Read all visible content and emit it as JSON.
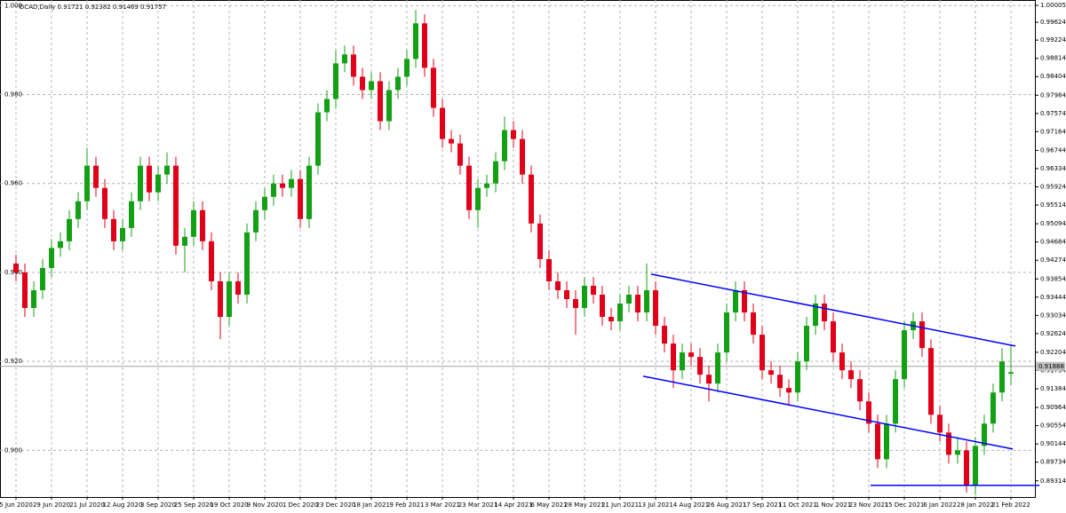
{
  "chart_data": {
    "type": "candlestick",
    "title": "AUDCAD,Daily 0.91721 0.92382 0.91469 0.91757",
    "up_color": "#14a014",
    "down_color": "#e0001a",
    "trendline_color": "#0000ff",
    "grid": true,
    "categories": [
      "5 Jun 2020",
      null,
      null,
      null,
      "29 Jun 2020",
      null,
      null,
      null,
      "21 Jul 2020",
      null,
      null,
      null,
      "12 Aug 2020",
      null,
      null,
      null,
      "3 Sep 2020",
      null,
      null,
      null,
      "25 Sep 2020",
      null,
      null,
      null,
      "19 Oct 2020",
      null,
      null,
      null,
      "9 Nov 2020",
      null,
      null,
      null,
      "1 Dec 2020",
      null,
      null,
      null,
      "23 Dec 2020",
      null,
      null,
      null,
      "18 Jan 2021",
      null,
      null,
      null,
      "9 Feb 2021",
      null,
      null,
      null,
      "3 Mar 2021",
      null,
      null,
      null,
      "23 Mar 2021",
      null,
      null,
      null,
      "14 Apr 2021",
      null,
      null,
      null,
      "6 May 2021",
      null,
      null,
      null,
      "28 May 2021",
      null,
      null,
      null,
      "21 Jun 2021",
      null,
      null,
      null,
      "13 Jul 2021",
      null,
      null,
      null,
      "4 Aug 2021",
      null,
      null,
      null,
      "26 Aug 2021",
      null,
      null,
      null,
      "17 Sep 2021",
      null,
      null,
      null,
      "11 Oct 2021",
      null,
      null,
      null,
      "1 Nov 2021",
      null,
      null,
      null,
      "23 Nov 2021",
      null,
      null,
      null,
      "15 Dec 2021",
      null,
      null,
      null,
      "6 Jan 2022",
      null,
      null,
      null,
      "28 Jan 2022",
      null,
      null,
      null,
      "21 Feb 2022"
    ],
    "ohlc": [
      [
        0.942,
        0.944,
        0.938,
        0.94
      ],
      [
        0.94,
        0.942,
        0.93,
        0.932
      ],
      [
        0.932,
        0.938,
        0.93,
        0.936
      ],
      [
        0.936,
        0.943,
        0.934,
        0.941
      ],
      [
        0.941,
        0.9475,
        0.939,
        0.9455
      ],
      [
        0.9455,
        0.949,
        0.9435,
        0.947
      ],
      [
        0.947,
        0.954,
        0.945,
        0.952
      ],
      [
        0.952,
        0.958,
        0.95,
        0.956
      ],
      [
        0.956,
        0.968,
        0.954,
        0.964
      ],
      [
        0.964,
        0.966,
        0.957,
        0.959
      ],
      [
        0.959,
        0.961,
        0.95,
        0.952
      ],
      [
        0.952,
        0.954,
        0.945,
        0.947
      ],
      [
        0.947,
        0.952,
        0.945,
        0.95
      ],
      [
        0.95,
        0.958,
        0.948,
        0.956
      ],
      [
        0.956,
        0.966,
        0.954,
        0.964
      ],
      [
        0.964,
        0.966,
        0.956,
        0.958
      ],
      [
        0.958,
        0.964,
        0.956,
        0.962
      ],
      [
        0.962,
        0.967,
        0.96,
        0.964
      ],
      [
        0.964,
        0.966,
        0.944,
        0.946
      ],
      [
        0.946,
        0.95,
        0.94,
        0.948
      ],
      [
        0.948,
        0.956,
        0.946,
        0.954
      ],
      [
        0.954,
        0.956,
        0.945,
        0.947
      ],
      [
        0.947,
        0.949,
        0.936,
        0.938
      ],
      [
        0.938,
        0.94,
        0.925,
        0.93
      ],
      [
        0.93,
        0.94,
        0.928,
        0.938
      ],
      [
        0.938,
        0.94,
        0.933,
        0.935
      ],
      [
        0.935,
        0.951,
        0.933,
        0.949
      ],
      [
        0.949,
        0.956,
        0.947,
        0.954
      ],
      [
        0.954,
        0.959,
        0.952,
        0.957
      ],
      [
        0.957,
        0.962,
        0.955,
        0.96
      ],
      [
        0.96,
        0.962,
        0.957,
        0.959
      ],
      [
        0.959,
        0.963,
        0.957,
        0.961
      ],
      [
        0.961,
        0.963,
        0.95,
        0.952
      ],
      [
        0.952,
        0.966,
        0.95,
        0.964
      ],
      [
        0.964,
        0.978,
        0.962,
        0.976
      ],
      [
        0.976,
        0.981,
        0.974,
        0.979
      ],
      [
        0.979,
        0.99,
        0.977,
        0.987
      ],
      [
        0.987,
        0.991,
        0.985,
        0.989
      ],
      [
        0.989,
        0.991,
        0.982,
        0.984
      ],
      [
        0.984,
        0.986,
        0.979,
        0.981
      ],
      [
        0.981,
        0.985,
        0.979,
        0.983
      ],
      [
        0.983,
        0.985,
        0.972,
        0.974
      ],
      [
        0.974,
        0.983,
        0.972,
        0.981
      ],
      [
        0.981,
        0.986,
        0.979,
        0.984
      ],
      [
        0.984,
        0.99,
        0.982,
        0.988
      ],
      [
        0.988,
        0.999,
        0.986,
        0.996
      ],
      [
        0.996,
        0.998,
        0.984,
        0.986
      ],
      [
        0.986,
        0.988,
        0.975,
        0.977
      ],
      [
        0.977,
        0.979,
        0.968,
        0.97
      ],
      [
        0.97,
        0.972,
        0.967,
        0.969
      ],
      [
        0.969,
        0.971,
        0.962,
        0.964
      ],
      [
        0.964,
        0.966,
        0.952,
        0.954
      ],
      [
        0.954,
        0.961,
        0.95,
        0.959
      ],
      [
        0.959,
        0.962,
        0.957,
        0.96
      ],
      [
        0.96,
        0.967,
        0.958,
        0.965
      ],
      [
        0.965,
        0.975,
        0.963,
        0.972
      ],
      [
        0.972,
        0.974,
        0.968,
        0.97
      ],
      [
        0.97,
        0.972,
        0.96,
        0.962
      ],
      [
        0.962,
        0.964,
        0.949,
        0.951
      ],
      [
        0.951,
        0.953,
        0.941,
        0.943
      ],
      [
        0.943,
        0.945,
        0.936,
        0.938
      ],
      [
        0.938,
        0.94,
        0.934,
        0.936
      ],
      [
        0.936,
        0.938,
        0.932,
        0.934
      ],
      [
        0.934,
        0.936,
        0.926,
        0.932
      ],
      [
        0.932,
        0.939,
        0.93,
        0.937
      ],
      [
        0.937,
        0.939,
        0.933,
        0.935
      ],
      [
        0.935,
        0.937,
        0.928,
        0.93
      ],
      [
        0.93,
        0.932,
        0.927,
        0.929
      ],
      [
        0.929,
        0.935,
        0.927,
        0.933
      ],
      [
        0.933,
        0.937,
        0.931,
        0.935
      ],
      [
        0.935,
        0.937,
        0.929,
        0.931
      ],
      [
        0.931,
        0.942,
        0.929,
        0.936
      ],
      [
        0.936,
        0.938,
        0.926,
        0.928
      ],
      [
        0.928,
        0.93,
        0.922,
        0.924
      ],
      [
        0.924,
        0.926,
        0.914,
        0.918
      ],
      [
        0.918,
        0.924,
        0.916,
        0.922
      ],
      [
        0.922,
        0.924,
        0.919,
        0.921
      ],
      [
        0.921,
        0.923,
        0.915,
        0.917
      ],
      [
        0.917,
        0.919,
        0.911,
        0.915
      ],
      [
        0.915,
        0.924,
        0.913,
        0.922
      ],
      [
        0.922,
        0.933,
        0.92,
        0.931
      ],
      [
        0.931,
        0.938,
        0.929,
        0.936
      ],
      [
        0.936,
        0.938,
        0.929,
        0.931
      ],
      [
        0.931,
        0.933,
        0.924,
        0.926
      ],
      [
        0.926,
        0.928,
        0.916,
        0.918
      ],
      [
        0.918,
        0.92,
        0.915,
        0.917
      ],
      [
        0.917,
        0.919,
        0.912,
        0.914
      ],
      [
        0.914,
        0.916,
        0.91,
        0.913
      ],
      [
        0.913,
        0.922,
        0.911,
        0.92
      ],
      [
        0.92,
        0.93,
        0.918,
        0.928
      ],
      [
        0.928,
        0.935,
        0.926,
        0.933
      ],
      [
        0.933,
        0.935,
        0.927,
        0.929
      ],
      [
        0.929,
        0.931,
        0.92,
        0.922
      ],
      [
        0.922,
        0.924,
        0.916,
        0.918
      ],
      [
        0.918,
        0.92,
        0.914,
        0.916
      ],
      [
        0.916,
        0.918,
        0.909,
        0.911
      ],
      [
        0.911,
        0.913,
        0.904,
        0.906
      ],
      [
        0.906,
        0.908,
        0.896,
        0.898
      ],
      [
        0.898,
        0.908,
        0.896,
        0.906
      ],
      [
        0.906,
        0.918,
        0.904,
        0.916
      ],
      [
        0.916,
        0.929,
        0.914,
        0.927
      ],
      [
        0.927,
        0.931,
        0.925,
        0.929
      ],
      [
        0.929,
        0.931,
        0.921,
        0.923
      ],
      [
        0.923,
        0.925,
        0.906,
        0.908
      ],
      [
        0.908,
        0.91,
        0.902,
        0.904
      ],
      [
        0.904,
        0.906,
        0.897,
        0.899
      ],
      [
        0.899,
        0.903,
        0.897,
        0.9
      ],
      [
        0.9,
        0.902,
        0.8905,
        0.892
      ],
      [
        0.892,
        0.903,
        0.89,
        0.901
      ],
      [
        0.901,
        0.908,
        0.899,
        0.906
      ],
      [
        0.906,
        0.915,
        0.904,
        0.913
      ],
      [
        0.913,
        0.923,
        0.911,
        0.92
      ],
      [
        0.91721,
        0.92382,
        0.91469,
        0.91757
      ]
    ],
    "current_price": 0.91888,
    "trendlines": [
      {
        "x": [
          71.5,
          112.5
        ],
        "y": [
          0.93961,
          0.92345
        ]
      },
      {
        "x": [
          70.6,
          112.2
        ],
        "y": [
          0.91667,
          0.90031
        ]
      },
      {
        "x": [
          96.2,
          115.2
        ],
        "y": [
          0.89213,
          0.89213
        ]
      }
    ],
    "ylim": [
      0.8895,
      1.00125
    ],
    "yticks": [
      {
        "value": 0.9,
        "label": "0.900"
      },
      {
        "value": 0.92,
        "label": "0.920"
      },
      {
        "value": 0.94,
        "label": "0.940"
      },
      {
        "value": 0.96,
        "label": "0.960"
      },
      {
        "value": 0.98,
        "label": "0.980"
      },
      {
        "value": 1.0,
        "label": "1.000"
      }
    ],
    "y2lim": [
      0.8895,
      1.00125
    ],
    "y2ticks": [
      1.00005,
      0.99624,
      0.99224,
      0.98814,
      0.98404,
      0.97984,
      0.97574,
      0.97164,
      0.96744,
      0.96334,
      0.95924,
      0.95514,
      0.95094,
      0.94684,
      0.94274,
      0.93854,
      0.93444,
      0.93034,
      0.92624,
      0.92204,
      0.91794,
      0.91384,
      0.90964,
      0.90554,
      0.90144,
      0.89734,
      0.89314
    ]
  }
}
